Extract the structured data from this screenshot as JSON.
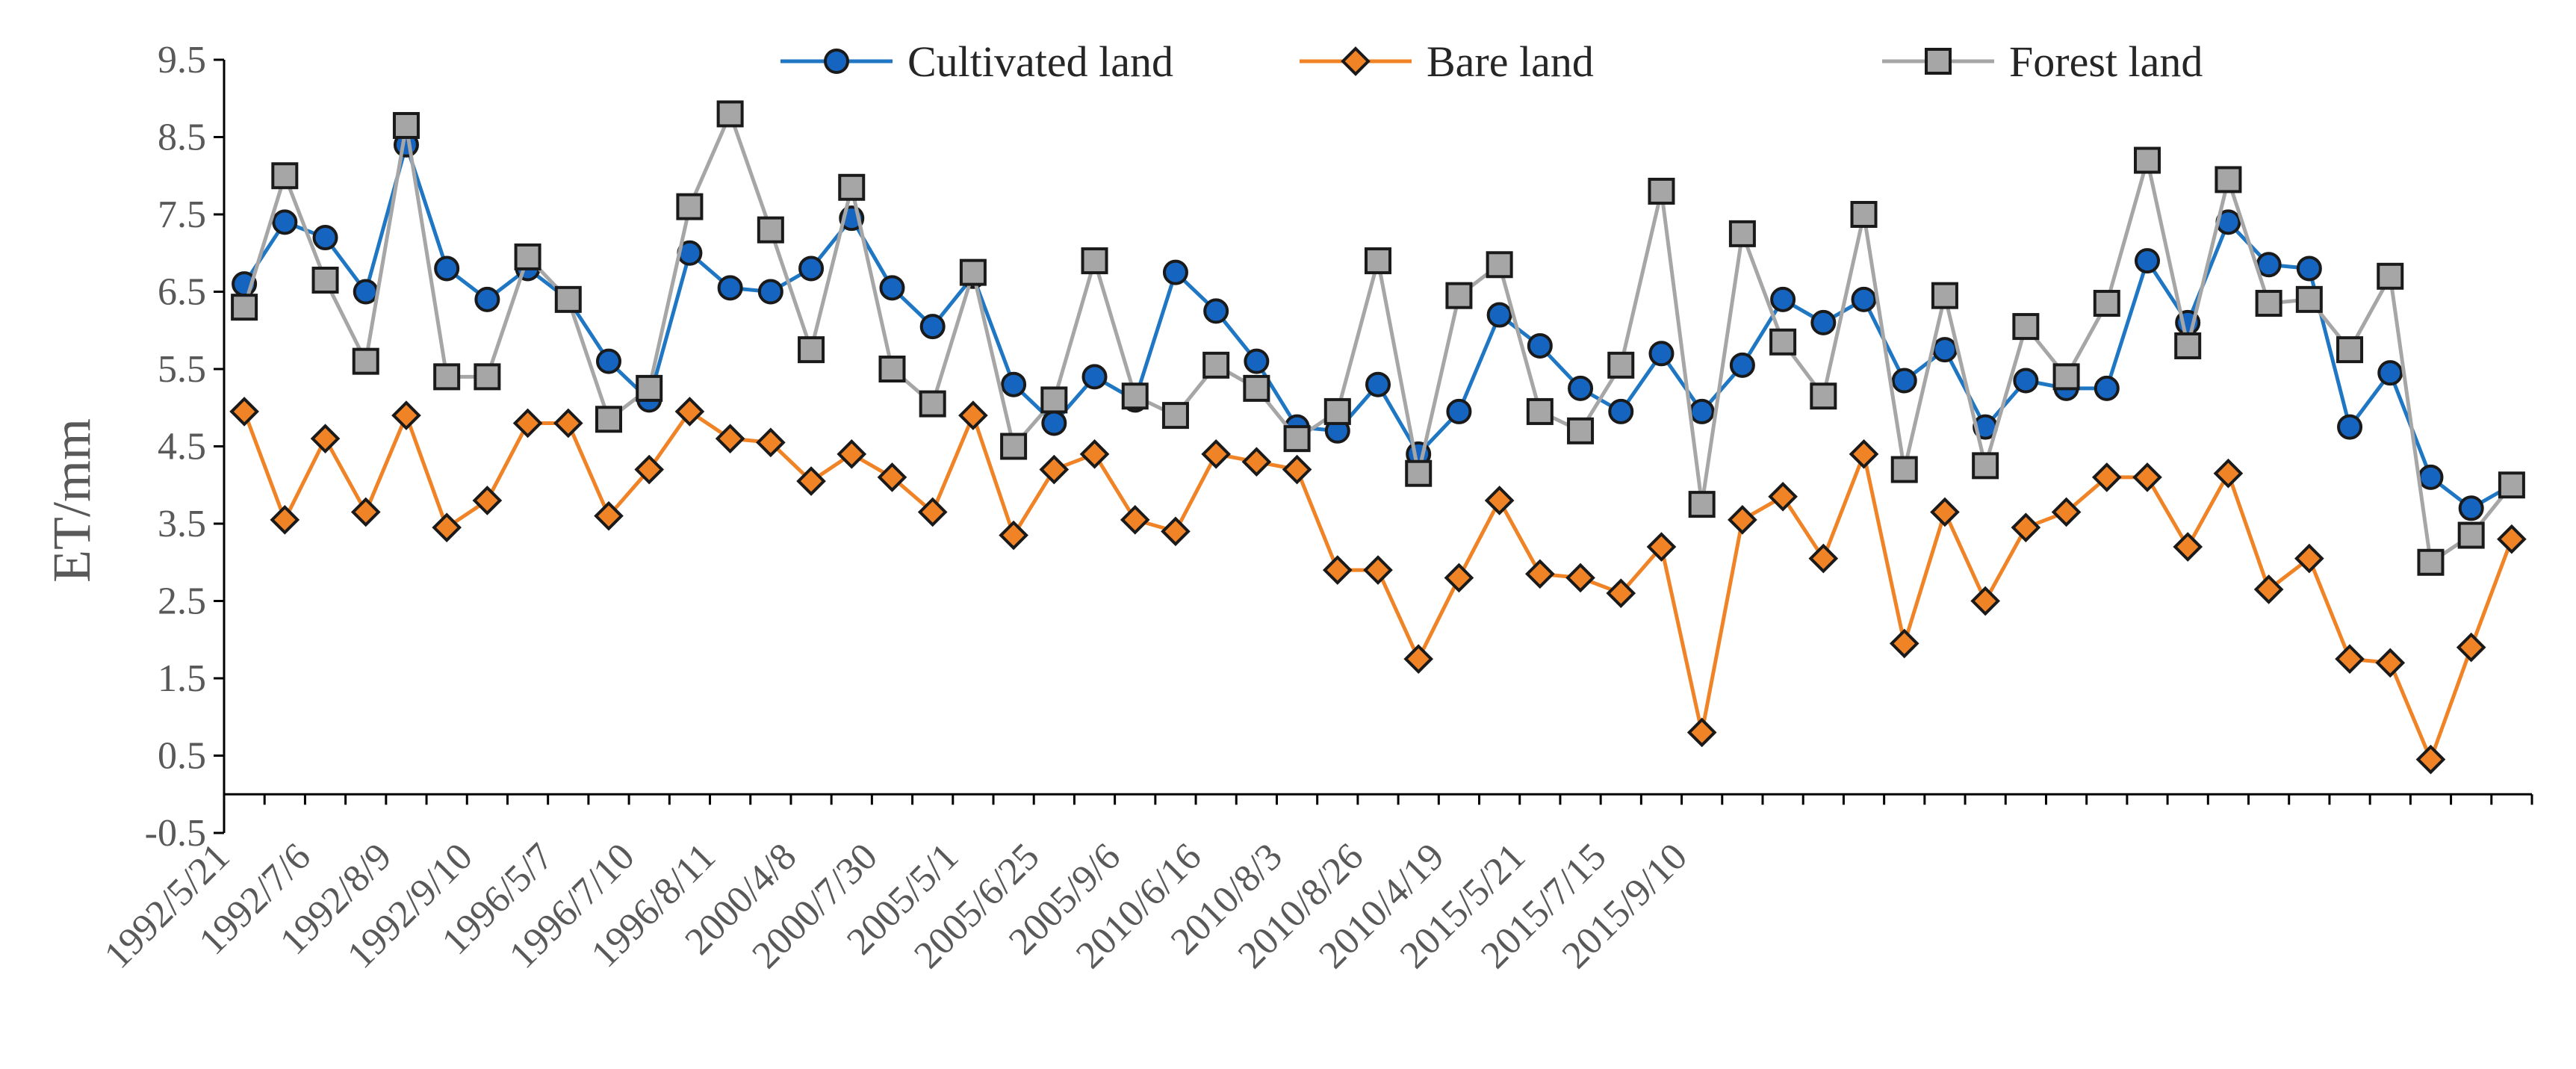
{
  "chart_data": {
    "type": "line",
    "title": "",
    "xlabel": "",
    "ylabel": "ET/mm",
    "ylim": [
      -0.5,
      9.5
    ],
    "yticks": [
      "-0.5",
      "0.5",
      "1.5",
      "2.5",
      "3.5",
      "4.5",
      "5.5",
      "6.5",
      "7.5",
      "8.5",
      "9.5"
    ],
    "grid": false,
    "legend_position": "top",
    "x_tick_labels": [
      "1992/5/21",
      "1992/7/6",
      "1992/8/9",
      "1992/9/10",
      "1996/5/7",
      "1996/7/10",
      "1996/8/11",
      "2000/4/8",
      "2000/7/30",
      "2005/5/1",
      "2005/6/25",
      "2005/9/6",
      "2010/6/16",
      "2010/8/3",
      "2010/8/26",
      "2010/4/19",
      "2015/5/21",
      "2015/7/15",
      "2015/9/10"
    ],
    "x_tick_every": 2,
    "series": [
      {
        "name": "Cultivated land",
        "color": "#1f77c4",
        "marker": "circle",
        "marker_color": "#1565c0",
        "values": [
          6.6,
          7.4,
          7.2,
          6.5,
          8.4,
          6.8,
          6.4,
          6.8,
          6.4,
          5.6,
          5.1,
          7.0,
          6.55,
          6.5,
          6.8,
          7.45,
          6.55,
          6.05,
          6.7,
          5.3,
          4.8,
          5.4,
          5.1,
          6.75,
          6.25,
          5.6,
          4.75,
          4.7,
          5.3,
          4.4,
          4.95,
          6.2,
          5.8,
          5.25,
          4.95,
          5.7,
          4.95,
          5.55,
          6.4,
          6.1,
          6.4,
          5.35,
          5.75,
          4.75,
          5.35,
          5.25,
          5.25,
          6.9,
          6.1,
          7.4,
          6.85,
          6.8,
          4.75,
          5.45,
          4.1,
          3.7,
          4.0
        ]
      },
      {
        "name": "Bare land",
        "color": "#f08326",
        "marker": "diamond",
        "marker_color": "#f08326",
        "values": [
          4.95,
          3.55,
          4.6,
          3.65,
          4.9,
          3.45,
          3.8,
          4.8,
          4.8,
          3.6,
          4.2,
          4.95,
          4.6,
          4.55,
          4.05,
          4.4,
          4.1,
          3.65,
          4.9,
          3.35,
          4.2,
          4.4,
          3.55,
          3.4,
          4.4,
          4.3,
          4.2,
          2.9,
          2.9,
          1.75,
          2.8,
          3.8,
          2.85,
          2.8,
          2.6,
          3.2,
          0.8,
          3.55,
          3.85,
          3.05,
          4.4,
          1.95,
          3.65,
          2.5,
          3.45,
          3.65,
          4.1,
          4.1,
          3.2,
          4.15,
          2.65,
          3.05,
          1.75,
          1.7,
          0.45,
          1.9,
          3.3
        ]
      },
      {
        "name": "Forest land",
        "color": "#a6a6a6",
        "marker": "square",
        "marker_color": "#a6a6a6",
        "values": [
          6.3,
          8.0,
          6.65,
          5.6,
          8.65,
          5.4,
          5.4,
          6.95,
          6.4,
          4.85,
          5.25,
          7.6,
          8.8,
          7.3,
          5.75,
          7.85,
          5.5,
          5.05,
          6.75,
          4.5,
          5.1,
          6.9,
          5.15,
          4.9,
          5.55,
          5.25,
          4.6,
          4.95,
          6.9,
          4.15,
          6.45,
          6.85,
          4.95,
          4.7,
          5.55,
          7.8,
          3.75,
          7.25,
          5.85,
          5.15,
          7.5,
          4.2,
          6.45,
          4.25,
          6.05,
          5.4,
          6.35,
          8.2,
          5.8,
          7.95,
          6.35,
          6.4,
          5.75,
          6.7,
          3.0,
          3.35,
          4.0
        ]
      }
    ]
  }
}
